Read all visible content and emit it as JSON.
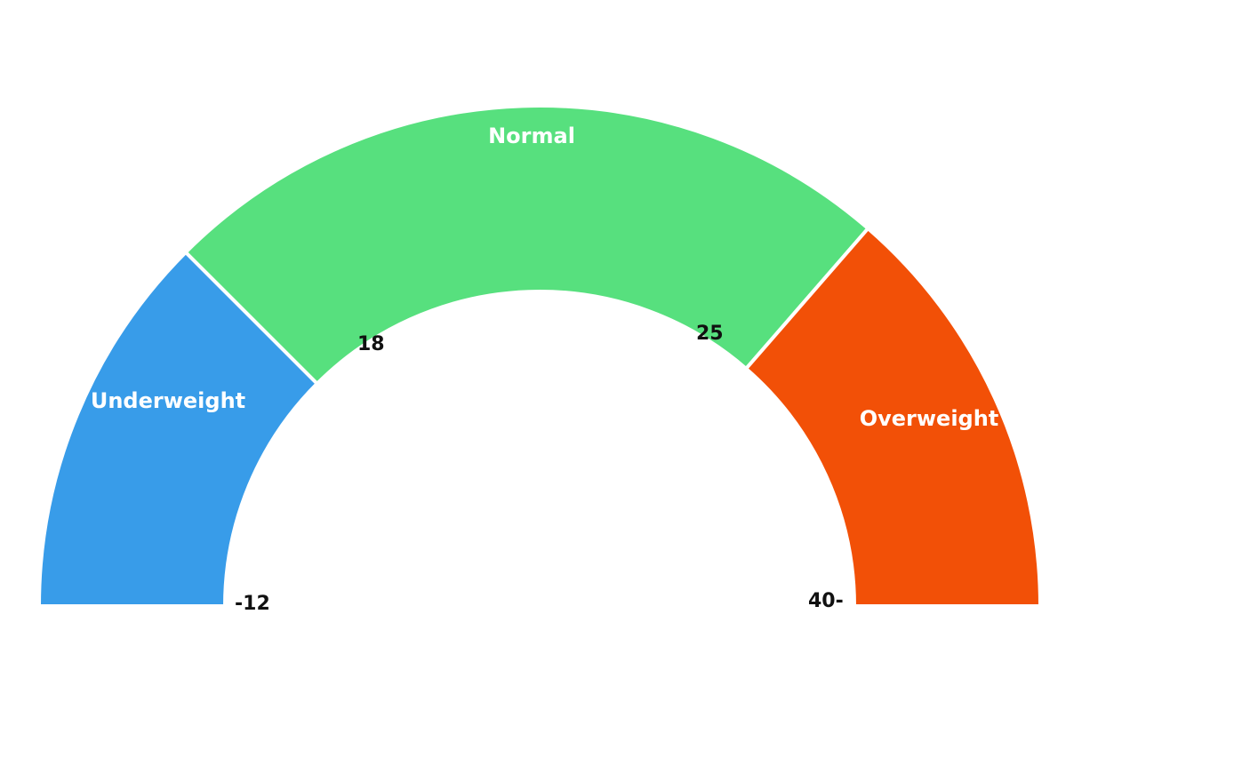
{
  "chart_data": {
    "type": "gauge",
    "bands": [
      {
        "label": "Underweight",
        "from": "-12",
        "to": "18",
        "color": "#389ce9"
      },
      {
        "label": "Normal",
        "from": "18",
        "to": "25",
        "color": "#57e07e"
      },
      {
        "label": "Overweight",
        "from": "25",
        "to": "40-",
        "color": "#f25007"
      }
    ],
    "ticks": [
      {
        "value": -12,
        "label": "-12"
      },
      {
        "value": 18,
        "label": "18"
      },
      {
        "value": 25,
        "label": "25"
      },
      {
        "value": 40,
        "label": "40-"
      }
    ],
    "band_boundaries_deg": [
      180,
      135,
      49,
      0
    ]
  }
}
